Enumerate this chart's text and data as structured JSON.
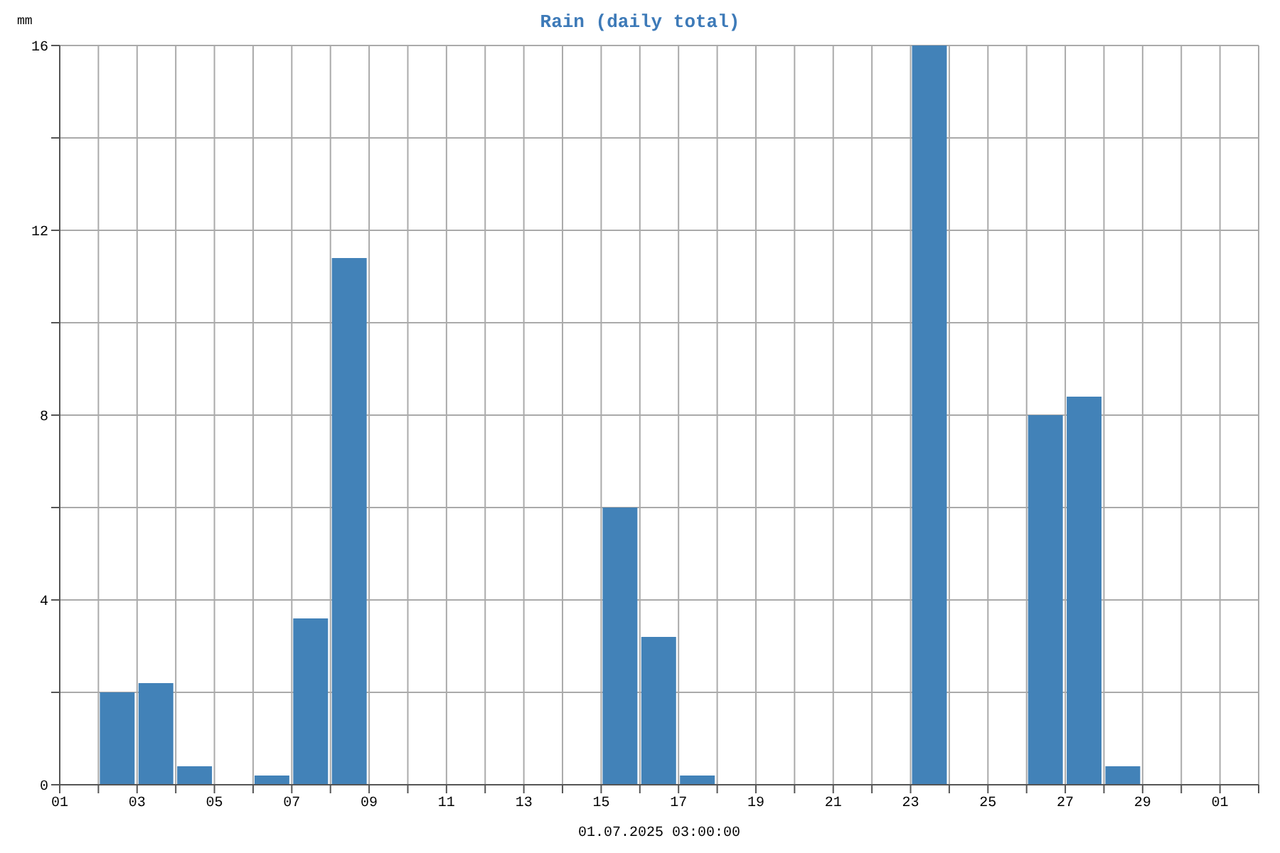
{
  "chart_data": {
    "type": "bar",
    "title": "Rain (daily total)",
    "xlabel": "01.07.2025 03:00:00",
    "ylabel": "mm",
    "x": [
      "2025-06-02T12:00",
      "2025-06-03T12:00",
      "2025-06-04T12:00",
      "2025-06-06T12:00",
      "2025-06-07T12:00",
      "2025-06-08T12:00",
      "2025-06-15T12:00",
      "2025-06-16T12:00",
      "2025-06-17T12:00",
      "2025-06-23T12:00",
      "2025-06-26T12:00",
      "2025-06-27T12:00",
      "2025-06-28T12:00"
    ],
    "values": [
      2.0,
      2.2,
      0.4,
      0.2,
      3.6,
      11.4,
      6.0,
      3.2,
      0.2,
      16,
      8.0,
      8.4,
      0.4
    ],
    "color": "#4282b8",
    "xlim": [
      "2025-06-01",
      "2025-07-02"
    ],
    "xticks": [
      {
        "value": "2025-06-01",
        "label": "01"
      },
      {
        "value": "2025-06-02",
        "label": null
      },
      {
        "value": "2025-06-03",
        "label": "03"
      },
      {
        "value": "2025-06-04",
        "label": null
      },
      {
        "value": "2025-06-05",
        "label": "05"
      },
      {
        "value": "2025-06-06",
        "label": null
      },
      {
        "value": "2025-06-07",
        "label": "07"
      },
      {
        "value": "2025-06-08",
        "label": null
      },
      {
        "value": "2025-06-09",
        "label": "09"
      },
      {
        "value": "2025-06-10",
        "label": null
      },
      {
        "value": "2025-06-11",
        "label": "11"
      },
      {
        "value": "2025-06-12",
        "label": null
      },
      {
        "value": "2025-06-13",
        "label": "13"
      },
      {
        "value": "2025-06-14",
        "label": null
      },
      {
        "value": "2025-06-15",
        "label": "15"
      },
      {
        "value": "2025-06-16",
        "label": null
      },
      {
        "value": "2025-06-17",
        "label": "17"
      },
      {
        "value": "2025-06-18",
        "label": null
      },
      {
        "value": "2025-06-19",
        "label": "19"
      },
      {
        "value": "2025-06-20",
        "label": null
      },
      {
        "value": "2025-06-21",
        "label": "21"
      },
      {
        "value": "2025-06-22",
        "label": null
      },
      {
        "value": "2025-06-23",
        "label": "23"
      },
      {
        "value": "2025-06-24",
        "label": null
      },
      {
        "value": "2025-06-25",
        "label": "25"
      },
      {
        "value": "2025-06-26",
        "label": null
      },
      {
        "value": "2025-06-27",
        "label": "27"
      },
      {
        "value": "2025-06-28",
        "label": null
      },
      {
        "value": "2025-06-29",
        "label": "29"
      },
      {
        "value": "2025-06-30",
        "label": null
      },
      {
        "value": "2025-07-01",
        "label": "01"
      },
      {
        "value": "2025-07-02",
        "label": null
      }
    ],
    "ylim": [
      0,
      16
    ],
    "yticks": [
      0,
      {
        "value": 2,
        "label": null
      },
      4,
      {
        "value": 6,
        "label": null
      },
      8,
      {
        "value": 10,
        "label": null
      },
      12,
      {
        "value": 14,
        "label": null
      },
      16
    ],
    "grid": true,
    "legend": false
  }
}
